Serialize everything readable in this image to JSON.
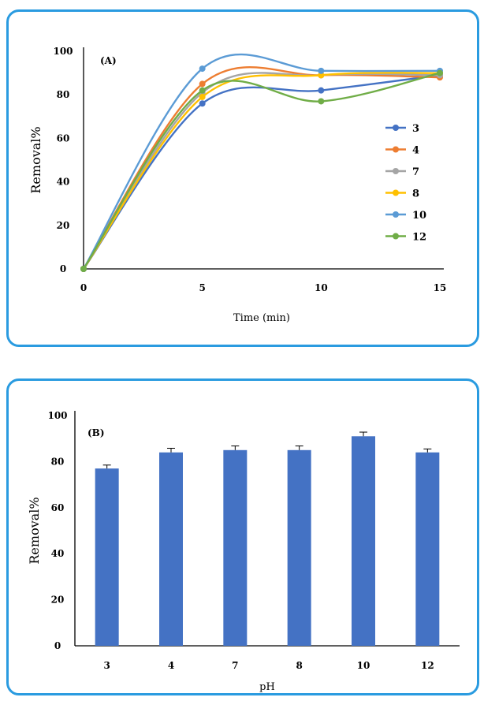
{
  "chart_data": [
    {
      "type": "line",
      "panel_label": "(A)",
      "xlabel": "Time (min)",
      "ylabel": "Removal%",
      "x": [
        0,
        5,
        10,
        15
      ],
      "xlim": [
        0,
        15
      ],
      "ylim": [
        0,
        100
      ],
      "xticks": [
        "0",
        "5",
        "10",
        "15"
      ],
      "yticks": [
        "0",
        "20",
        "40",
        "60",
        "80",
        "100"
      ],
      "legend_position": "right",
      "series": [
        {
          "name": "3",
          "color": "#4472c4",
          "values": [
            0,
            76,
            82,
            89
          ]
        },
        {
          "name": "4",
          "color": "#ed7d31",
          "values": [
            0,
            85,
            89,
            88
          ]
        },
        {
          "name": "7",
          "color": "#a5a5a5",
          "values": [
            0,
            81,
            89,
            89
          ]
        },
        {
          "name": "8",
          "color": "#ffc000",
          "values": [
            0,
            79,
            89,
            90
          ]
        },
        {
          "name": "10",
          "color": "#5b9bd5",
          "values": [
            0,
            92,
            91,
            91
          ]
        },
        {
          "name": "12",
          "color": "#70ad47",
          "values": [
            0,
            82,
            77,
            90
          ]
        }
      ]
    },
    {
      "type": "bar",
      "panel_label": "(B)",
      "xlabel": "pH",
      "ylabel": "Removal%",
      "categories": [
        "3",
        "4",
        "7",
        "8",
        "10",
        "12"
      ],
      "values": [
        77,
        84,
        85,
        85,
        91,
        84
      ],
      "errors": [
        1.5,
        1.8,
        1.8,
        1.8,
        1.8,
        1.5
      ],
      "ylim": [
        0,
        100
      ],
      "yticks": [
        "0",
        "20",
        "40",
        "60",
        "80",
        "100"
      ],
      "bar_color": "#4472c4"
    }
  ]
}
